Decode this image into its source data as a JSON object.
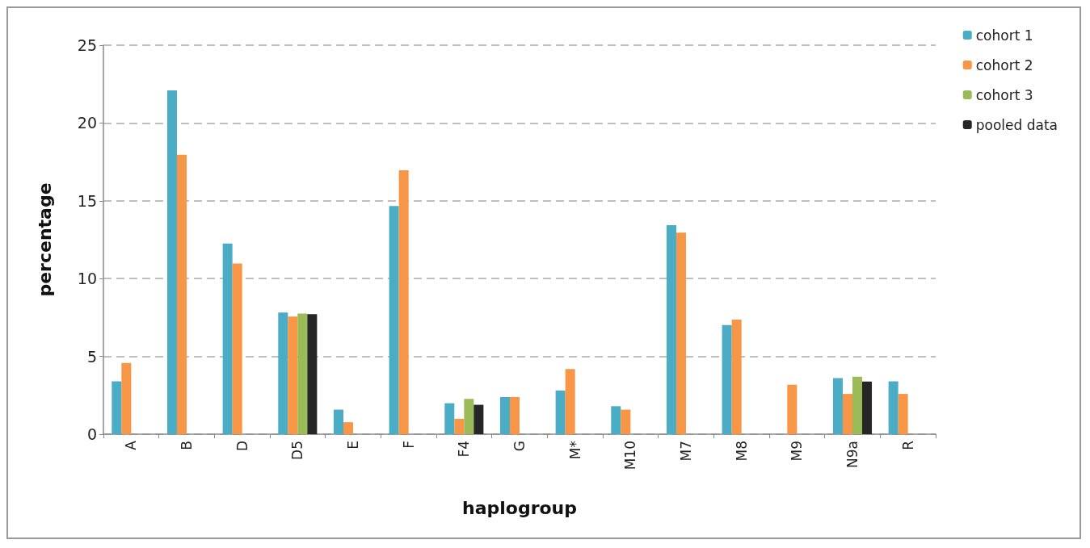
{
  "chart_data": {
    "type": "bar",
    "xlabel": "haplogroup",
    "ylabel": "percentage",
    "categories": [
      "A",
      "B",
      "D",
      "D5",
      "E",
      "F",
      "F4",
      "G",
      "M*",
      "M10",
      "M7",
      "M8",
      "M9",
      "N9a",
      "R"
    ],
    "series": [
      {
        "name": "cohort 1",
        "color": "#4bacc6",
        "values": [
          3.4,
          22.1,
          12.25,
          7.82,
          1.58,
          14.66,
          1.99,
          2.39,
          2.81,
          1.8,
          13.44,
          7.02,
          null,
          3.6,
          3.4
        ]
      },
      {
        "name": "cohort 2",
        "color": "#f79646",
        "values": [
          4.58,
          17.96,
          10.97,
          7.56,
          0.77,
          16.96,
          0.99,
          2.39,
          4.19,
          1.58,
          12.95,
          7.36,
          3.18,
          2.59,
          2.59
        ]
      },
      {
        "name": "cohort 3",
        "color": "#9bbb59",
        "values": [
          null,
          null,
          null,
          7.75,
          null,
          null,
          2.27,
          null,
          null,
          null,
          null,
          null,
          null,
          3.69,
          null
        ]
      },
      {
        "name": "pooled data",
        "color": "#262626",
        "values": [
          null,
          null,
          null,
          7.72,
          null,
          null,
          1.89,
          null,
          null,
          null,
          null,
          null,
          null,
          3.39,
          null
        ]
      }
    ],
    "ylim": [
      0,
      25
    ],
    "yticks": [
      0,
      5,
      10,
      15,
      20,
      25
    ],
    "grid": "y",
    "legend": "top right"
  }
}
